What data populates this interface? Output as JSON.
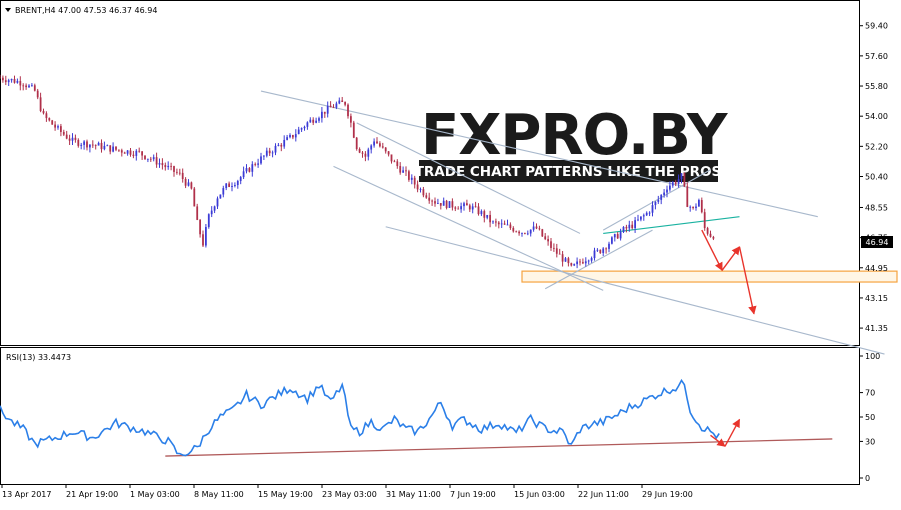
{
  "header": {
    "symbol_line": "BRENT,H4  47.00 47.53 46.37 46.94",
    "dropdown_icon": "triangle-down-icon"
  },
  "watermark": {
    "logo_text": "FXPRO.BY",
    "tagline": "TRADE CHART PATTERNS LIKE THE PROS"
  },
  "colors": {
    "bull_candle": "#3b3bd6",
    "bear_candle": "#b0304a",
    "rsi_line": "#2b7fe8",
    "channel_line": "#a8b8cc",
    "support_zone": "#f5a340",
    "rsi_trendline": "#b05a5a",
    "forecast_arrow": "#e8342c",
    "wedge_line": "#19b2a0"
  },
  "chart_data": [
    {
      "type": "candlestick",
      "title": "BRENT,H4",
      "ohlc_last": {
        "open": 47.0,
        "high": 47.53,
        "low": 46.37,
        "close": 46.94
      },
      "current_price_label": "46.94",
      "ylim": [
        40.4,
        60.1
      ],
      "y_ticks": [
        "59.40",
        "57.60",
        "55.80",
        "54.00",
        "52.20",
        "50.40",
        "48.55",
        "46.75",
        "44.95",
        "43.15",
        "41.35"
      ],
      "x_tick_labels": [
        "13 Apr 2017",
        "21 Apr 19:00",
        "1 May 03:00",
        "8 May 11:00",
        "15 May 19:00",
        "23 May 03:00",
        "31 May 11:00",
        "7 Jun 19:00",
        "15 Jun 03:00",
        "22 Jun 11:00",
        "29 Jun 19:00"
      ],
      "close_path_anchors": [
        [
          0,
          56.3
        ],
        [
          8,
          56.0
        ],
        [
          12,
          55.5
        ],
        [
          15,
          54.0
        ],
        [
          20,
          53.2
        ],
        [
          25,
          52.5
        ],
        [
          32,
          52.3
        ],
        [
          40,
          52.0
        ],
        [
          48,
          51.8
        ],
        [
          55,
          51.2
        ],
        [
          62,
          50.5
        ],
        [
          66,
          49.6
        ],
        [
          68,
          47.6
        ],
        [
          70,
          46.4
        ],
        [
          72,
          48.0
        ],
        [
          75,
          49.2
        ],
        [
          78,
          49.8
        ],
        [
          82,
          50.2
        ],
        [
          88,
          51.2
        ],
        [
          94,
          52.0
        ],
        [
          100,
          52.7
        ],
        [
          106,
          53.6
        ],
        [
          112,
          54.3
        ],
        [
          116,
          54.7
        ],
        [
          119,
          54.8
        ],
        [
          121,
          53.6
        ],
        [
          123,
          52.2
        ],
        [
          126,
          51.6
        ],
        [
          129,
          52.6
        ],
        [
          132,
          52.0
        ],
        [
          136,
          51.2
        ],
        [
          140,
          50.5
        ],
        [
          145,
          49.6
        ],
        [
          150,
          48.9
        ],
        [
          155,
          48.7
        ],
        [
          159,
          48.6
        ],
        [
          162,
          48.6
        ],
        [
          166,
          48.2
        ],
        [
          170,
          47.6
        ],
        [
          175,
          47.4
        ],
        [
          180,
          47.1
        ],
        [
          185,
          47.3
        ],
        [
          188,
          46.6
        ],
        [
          191,
          46.0
        ],
        [
          194,
          45.5
        ],
        [
          197,
          44.9
        ],
        [
          200,
          45.3
        ],
        [
          203,
          45.6
        ],
        [
          207,
          46.0
        ],
        [
          211,
          46.6
        ],
        [
          215,
          47.2
        ],
        [
          219,
          47.6
        ],
        [
          223,
          48.2
        ],
        [
          227,
          49.0
        ],
        [
          230,
          49.8
        ],
        [
          233,
          50.1
        ],
        [
          235,
          50.4
        ],
        [
          237,
          48.8
        ],
        [
          239,
          48.4
        ],
        [
          241,
          49.0
        ],
        [
          243,
          47.3
        ],
        [
          245,
          46.9
        ]
      ],
      "overlays": {
        "upper_channel": {
          "from": [
            90,
            55.5
          ],
          "to": [
            282,
            48.0
          ]
        },
        "mid_channel_upper": {
          "from": [
            123,
            53.6
          ],
          "to": [
            200,
            47.0
          ]
        },
        "mid_channel_lower": {
          "from": [
            115,
            51.0
          ],
          "to": [
            208,
            43.6
          ]
        },
        "lower_channel": {
          "from": [
            133,
            47.4
          ],
          "to": [
            305,
            39.8
          ]
        },
        "rising_channel_top": {
          "from": [
            208,
            47.2
          ],
          "to": [
            245,
            50.8
          ]
        },
        "rising_channel_bottom": {
          "from": [
            188,
            43.7
          ],
          "to": [
            225,
            47.2
          ]
        },
        "wedge_line": {
          "from": [
            208,
            47.0
          ],
          "to": [
            255,
            48.0
          ]
        },
        "support_zone": {
          "price_low": 44.1,
          "price_high": 44.75,
          "x_from": 180
        }
      },
      "forecast_path": [
        [
          242,
          47.2
        ],
        [
          249,
          44.8
        ],
        [
          255,
          46.2
        ],
        [
          260,
          42.2
        ]
      ]
    },
    {
      "type": "line",
      "title": "RSI(13) 33.4473",
      "series": [
        {
          "name": "RSI(13)",
          "last_value": 33.4473
        }
      ],
      "ylim": [
        0,
        100
      ],
      "y_ticks": [
        "100",
        "70",
        "50",
        "30",
        "0"
      ],
      "rsi_anchors": [
        [
          0,
          56
        ],
        [
          4,
          46
        ],
        [
          8,
          40
        ],
        [
          12,
          28
        ],
        [
          18,
          32
        ],
        [
          25,
          38
        ],
        [
          32,
          33
        ],
        [
          40,
          45
        ],
        [
          50,
          38
        ],
        [
          58,
          30
        ],
        [
          62,
          18
        ],
        [
          68,
          25
        ],
        [
          72,
          40
        ],
        [
          76,
          50
        ],
        [
          80,
          55
        ],
        [
          85,
          68
        ],
        [
          90,
          60
        ],
        [
          95,
          67
        ],
        [
          100,
          74
        ],
        [
          106,
          65
        ],
        [
          110,
          76
        ],
        [
          114,
          62
        ],
        [
          118,
          76
        ],
        [
          121,
          40
        ],
        [
          124,
          38
        ],
        [
          128,
          46
        ],
        [
          132,
          40
        ],
        [
          136,
          48
        ],
        [
          140,
          40
        ],
        [
          144,
          38
        ],
        [
          148,
          48
        ],
        [
          152,
          62
        ],
        [
          156,
          43
        ],
        [
          160,
          48
        ],
        [
          166,
          40
        ],
        [
          172,
          45
        ],
        [
          178,
          37
        ],
        [
          183,
          48
        ],
        [
          187,
          42
        ],
        [
          190,
          39
        ],
        [
          194,
          38
        ],
        [
          197,
          26
        ],
        [
          200,
          40
        ],
        [
          204,
          44
        ],
        [
          208,
          46
        ],
        [
          213,
          52
        ],
        [
          217,
          58
        ],
        [
          221,
          62
        ],
        [
          226,
          68
        ],
        [
          230,
          72
        ],
        [
          233,
          74
        ],
        [
          236,
          78
        ],
        [
          238,
          56
        ],
        [
          240,
          48
        ],
        [
          242,
          42
        ],
        [
          245,
          38
        ],
        [
          248,
          33.4
        ]
      ],
      "trendline": {
        "from": [
          57,
          18
        ],
        "to": [
          287,
          32
        ]
      },
      "forecast_path": [
        [
          245,
          35
        ],
        [
          250,
          26
        ],
        [
          255,
          48
        ]
      ]
    }
  ]
}
